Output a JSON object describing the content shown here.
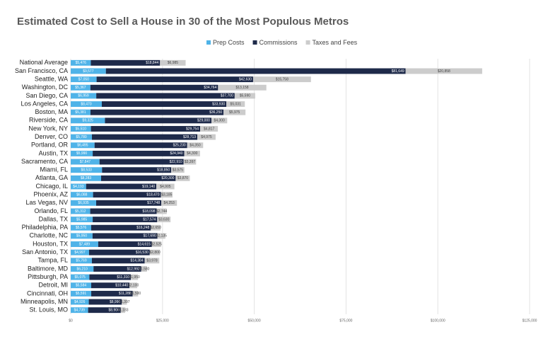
{
  "chart_data": {
    "type": "stacked-bar-horizontal",
    "title": "Estimated Cost to Sell a House in 30 of the Most Populous Metros",
    "categories": [
      "National Average",
      "San Francisco, CA",
      "Seattle, WA",
      "Washington, DC",
      "San Diego, CA",
      "Los Angeles, CA",
      "Boston, MA",
      "Riverside, CA",
      "New York, NY",
      "Denver, CO",
      "Portland, OR",
      "Austin, TX",
      "Sacramento, CA",
      "Miami, FL",
      "Atlanta, GA",
      "Chicago, IL",
      "Phoenix, AZ",
      "Las Vegas, NV",
      "Orlando, FL",
      "Dallas, TX",
      "Philadelphia, PA",
      "Charlotte, NC",
      "Houston, TX",
      "San Antonio, TX",
      "Tampa, FL",
      "Baltimore, MD",
      "Pittsburgh, PA",
      "Detroit, MI",
      "Cincinnati, OH",
      "Minneapolis, MN",
      "St. Louis, MO"
    ],
    "series": [
      {
        "name": "Prep Costs",
        "color": "#4fb3e8",
        "values": [
          5476,
          9577,
          7050,
          5367,
          6959,
          8470,
          5381,
          9325,
          5510,
          5780,
          6495,
          5990,
          7847,
          8533,
          8283,
          4193,
          6088,
          6935,
          5312,
          5985,
          5576,
          5950,
          7489,
          4997,
          5769,
          6210,
          5075,
          5584,
          5591,
          4926,
          4739
        ],
        "value_labels": [
          "$5,476",
          "$9,577",
          "$7,050",
          "$5,367",
          "$6,959",
          "$8,470",
          "$5,381",
          "$9,325",
          "$5,510",
          "$5,780",
          "$6,495",
          "$5,990",
          "$7,847",
          "$8,533",
          "$8,283",
          "$4,193",
          "$6,088",
          "$6,935",
          "$5,312",
          "$5,985",
          "$5,576",
          "$5,950",
          "$7,489",
          "$4,997",
          "$5,769",
          "$6,210",
          "$5,075",
          "$5,584",
          "$5,591",
          "$4,926",
          "$4,739"
        ]
      },
      {
        "name": "Commissions",
        "color": "#1e2a4a",
        "values": [
          18844,
          81649,
          42630,
          34764,
          37700,
          33930,
          36250,
          29000,
          29754,
          28713,
          25230,
          24940,
          22910,
          18850,
          20300,
          19140,
          18470,
          17748,
          18098,
          17574,
          16248,
          17690,
          14615,
          16530,
          14384,
          12992,
          11310,
          10440,
          11288,
          8990,
          8900
        ],
        "value_labels": [
          "$18,844",
          "$81,649",
          "$42,630",
          "$34,764",
          "$37,700",
          "$33,930",
          "$36,250",
          "$29,000",
          "$29,754",
          "$28,713",
          "$25,230",
          "$24,940",
          "$22,910",
          "$18,850",
          "$20,300",
          "$19,140",
          "$18,470",
          "$17,748",
          "$18,098",
          "$17,574",
          "$16,248",
          "$17,690",
          "$14,615",
          "$16,530",
          "$14,384",
          "$12,992",
          "$11,310",
          "$10,440",
          "$11,288",
          "$8,990",
          "$8,900"
        ]
      },
      {
        "name": "Taxes and Fees",
        "color": "#cccccc",
        "values": [
          6985,
          20858,
          15758,
          13158,
          5590,
          5031,
          5975,
          4300,
          4817,
          4975,
          4350,
          4300,
          3397,
          3575,
          3870,
          4905,
          3185,
          4253,
          2744,
          3630,
          2650,
          2135,
          2525,
          2800,
          3978,
          1580,
          1950,
          2100,
          1500,
          1397,
          1183
        ],
        "value_labels": [
          "$6,985",
          "$20,858",
          "$15,758",
          "$13,158",
          "$5,590",
          "$5,031",
          "$5,975",
          "$4,300",
          "$4,817",
          "$4,975",
          "$4,350",
          "$4,300",
          "$3,397",
          "$3,575",
          "$3,870",
          "$4,905",
          "$3,185",
          "$4,253",
          "$2,744",
          "$3,630",
          "$2,650",
          "$2,135",
          "$2,525",
          "$2,800",
          "$3,978",
          "$1,580",
          "$1,950",
          "$2,100",
          "$1,500",
          "$1,397",
          "$1,183"
        ]
      }
    ],
    "xlim": [
      0,
      125000
    ],
    "xticks": [
      {
        "value": 0,
        "label": "$0"
      },
      {
        "value": 25000,
        "label": "$25,000"
      },
      {
        "value": 50000,
        "label": "$50,000"
      },
      {
        "value": 75000,
        "label": "$75,000"
      },
      {
        "value": 100000,
        "label": "$100,000"
      },
      {
        "value": 125000,
        "label": "$125,000"
      }
    ],
    "grid": true,
    "legend": "top"
  }
}
